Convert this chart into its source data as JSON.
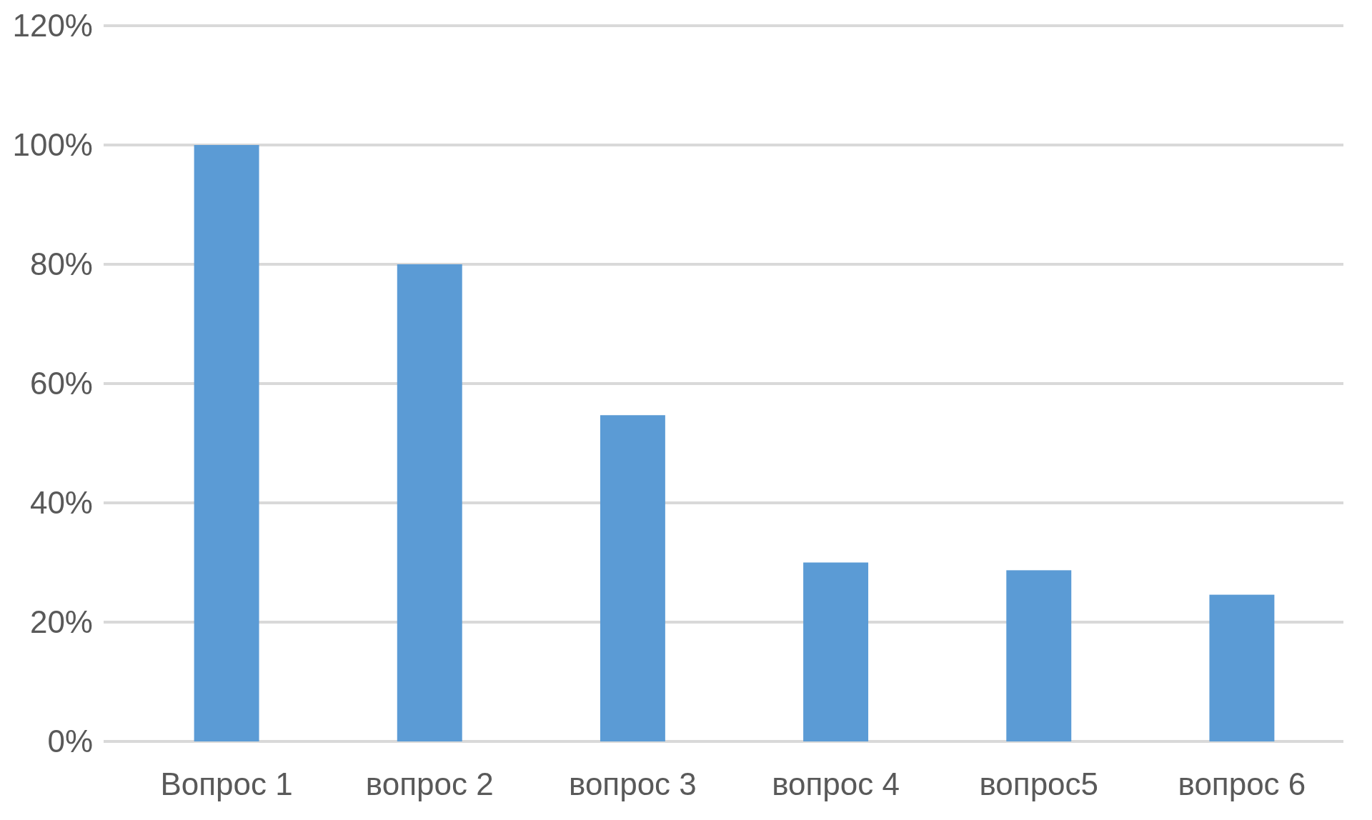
{
  "chart_data": {
    "type": "bar",
    "categories": [
      "Вопрос 1",
      "вопрос 2",
      "вопрос 3",
      "вопрос 4",
      "вопрос5",
      "вопрос 6"
    ],
    "values": [
      100,
      80,
      54.7,
      30,
      28.7,
      24.6
    ],
    "color": "#5b9bd5",
    "ylim": [
      0,
      120
    ],
    "yticks": [
      {
        "value": 0,
        "label": "0%"
      },
      {
        "value": 20,
        "label": "20%"
      },
      {
        "value": 40,
        "label": "40%"
      },
      {
        "value": 60,
        "label": "60%"
      },
      {
        "value": 80,
        "label": "80%"
      },
      {
        "value": 100,
        "label": "100%"
      },
      {
        "value": 120,
        "label": "120%"
      }
    ],
    "grid": "y"
  }
}
